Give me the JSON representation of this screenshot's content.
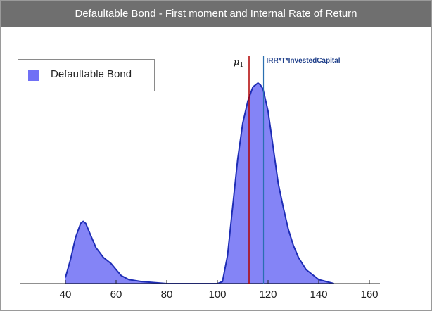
{
  "chart_data": {
    "type": "area",
    "title": "Defaultable Bond - First moment and Internal Rate of Return",
    "xlabel": "",
    "ylabel": "",
    "xlim": [
      20,
      160
    ],
    "ylim": [
      0,
      1
    ],
    "xticks": [
      40,
      60,
      80,
      100,
      120,
      140,
      160
    ],
    "grid": false,
    "legend": {
      "placement": "top-left"
    },
    "series": [
      {
        "name": "Defaultable Bond",
        "color": "#6f6ff4",
        "curve_color": "#1e2db5",
        "x": [
          40,
          42,
          44,
          46,
          47,
          48,
          50,
          52,
          55,
          58,
          60,
          62,
          65,
          70,
          80,
          90,
          100,
          102,
          104,
          106,
          108,
          110,
          112,
          114,
          116,
          117,
          118,
          120,
          122,
          124,
          126,
          128,
          130,
          132,
          135,
          138,
          140,
          143,
          146
        ],
        "y": [
          0.03,
          0.12,
          0.23,
          0.3,
          0.31,
          0.3,
          0.24,
          0.18,
          0.13,
          0.1,
          0.07,
          0.04,
          0.02,
          0.01,
          0.0,
          0.0,
          0.0,
          0.01,
          0.14,
          0.38,
          0.62,
          0.8,
          0.91,
          0.98,
          1.0,
          0.99,
          0.97,
          0.86,
          0.68,
          0.5,
          0.38,
          0.27,
          0.19,
          0.13,
          0.07,
          0.04,
          0.02,
          0.01,
          0.0
        ]
      }
    ],
    "annotations": [
      {
        "label": "μ1",
        "x": 112.5,
        "color": "#b00000"
      },
      {
        "label": "IRR*T*InvestedCapital",
        "x": 118.2,
        "color": "#2a6fb0"
      }
    ]
  }
}
